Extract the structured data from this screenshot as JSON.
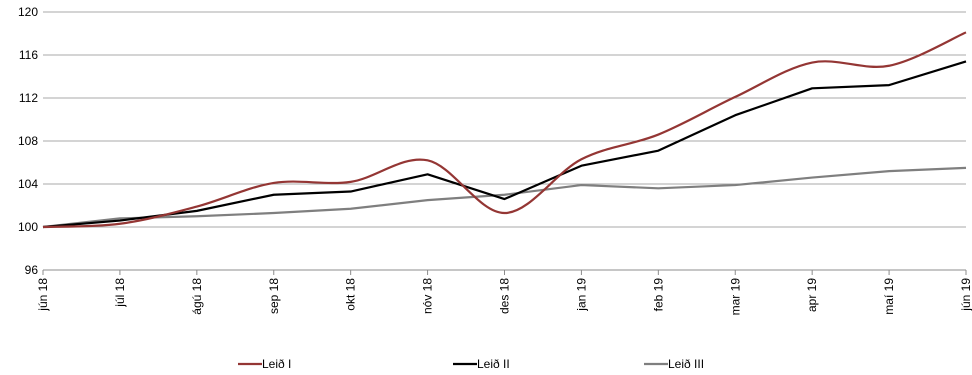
{
  "chart_data": {
    "type": "line",
    "categories": [
      "jún 18",
      "júl 18",
      "ágú 18",
      "sep 18",
      "okt 18",
      "nóv 18",
      "des 18",
      "jan 19",
      "feb 19",
      "mar 19",
      "apr 19",
      "maí 19",
      "jún 19"
    ],
    "series": [
      {
        "name": "Leið I",
        "color": "#943634",
        "smooth": true,
        "values": [
          100,
          100.3,
          101.9,
          104.1,
          104.2,
          106.2,
          101.3,
          106.3,
          108.6,
          112.1,
          115.3,
          115.0,
          118.1
        ]
      },
      {
        "name": "Leið II",
        "color": "#000000",
        "smooth": false,
        "values": [
          100,
          100.6,
          101.5,
          103.0,
          103.3,
          104.9,
          102.6,
          105.7,
          107.1,
          110.4,
          112.9,
          113.2,
          115.4
        ]
      },
      {
        "name": "Leið III",
        "color": "#7f7f7f",
        "smooth": false,
        "values": [
          100,
          100.8,
          101.0,
          101.3,
          101.7,
          102.5,
          103.0,
          103.9,
          103.6,
          103.9,
          104.6,
          105.2,
          105.5
        ]
      }
    ],
    "yticks": [
      96,
      100,
      104,
      108,
      112,
      116,
      120
    ],
    "ylim": [
      96,
      120
    ],
    "grid": true,
    "legend_position": "bottom"
  }
}
